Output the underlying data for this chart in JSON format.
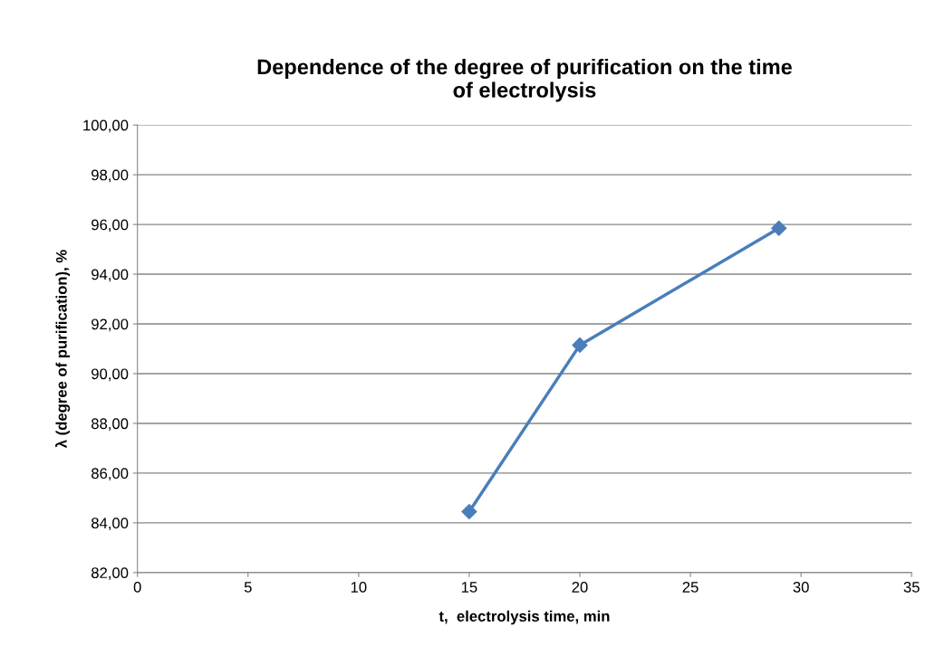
{
  "chart_data": {
    "type": "line",
    "title": "Dependence of the degree of purification on the time\nof electrolysis",
    "xlabel": "t,  electrolysis time, min",
    "ylabel": "λ (degree of purification), %",
    "x": [
      15,
      20,
      29
    ],
    "series": [
      {
        "color": "#4a7ebb",
        "values": [
          84.45,
          91.15,
          95.85
        ]
      }
    ],
    "xlim": [
      0,
      35
    ],
    "xticks": [
      0,
      5,
      10,
      15,
      20,
      25,
      30,
      35
    ],
    "ylim": [
      82,
      100
    ],
    "yticks": [
      {
        "value": 82,
        "label": "82,00"
      },
      {
        "value": 84,
        "label": "84,00"
      },
      {
        "value": 86,
        "label": "86,00"
      },
      {
        "value": 88,
        "label": "88,00"
      },
      {
        "value": 90,
        "label": "90,00"
      },
      {
        "value": 92,
        "label": "92,00"
      },
      {
        "value": 94,
        "label": "94,00"
      },
      {
        "value": 96,
        "label": "96,00"
      },
      {
        "value": 98,
        "label": "98,00"
      },
      {
        "value": 100,
        "label": "100,00"
      }
    ],
    "grid": "y",
    "marker": "diamond",
    "line_style": "solid"
  }
}
